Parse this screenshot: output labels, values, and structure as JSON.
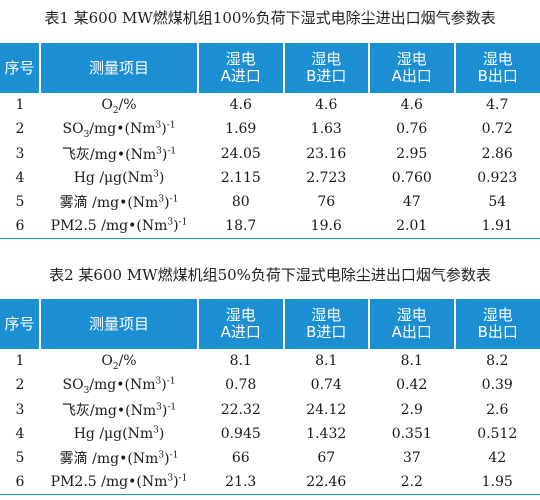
{
  "table1": {
    "caption": "表1 某600 MW燃煤机组100%负荷下湿式电除尘进出口烟气参数表",
    "headers": {
      "seq": "序号",
      "item": "测量项目",
      "cols": [
        {
          "line1": "湿电",
          "line2": "A进口"
        },
        {
          "line1": "湿电",
          "line2": "B进口"
        },
        {
          "line1": "湿电",
          "line2": "A出口"
        },
        {
          "line1": "湿电",
          "line2": "B出口"
        }
      ]
    },
    "rows": [
      {
        "no": "1",
        "values": [
          "4.6",
          "4.6",
          "4.6",
          "4.7"
        ]
      },
      {
        "no": "2",
        "values": [
          "1.69",
          "1.63",
          "0.76",
          "0.72"
        ]
      },
      {
        "no": "3",
        "values": [
          "24.05",
          "23.16",
          "2.95",
          "2.86"
        ]
      },
      {
        "no": "4",
        "values": [
          "2.115",
          "2.723",
          "0.760",
          "0.923"
        ]
      },
      {
        "no": "5",
        "values": [
          "80",
          "76",
          "47",
          "54"
        ]
      },
      {
        "no": "6",
        "values": [
          "18.7",
          "19.6",
          "2.01",
          "1.91"
        ]
      }
    ]
  },
  "table2": {
    "caption": "表2 某600 MW燃煤机组50%负荷下湿式电除尘进出口烟气参数表",
    "headers": {
      "seq": "序号",
      "item": "测量项目",
      "cols": [
        {
          "line1": "湿电",
          "line2": "A进口"
        },
        {
          "line1": "湿电",
          "line2": "B进口"
        },
        {
          "line1": "湿电",
          "line2": "A出口"
        },
        {
          "line1": "湿电",
          "line2": "B出口"
        }
      ]
    },
    "rows": [
      {
        "no": "1",
        "values": [
          "8.1",
          "8.1",
          "8.1",
          "8.2"
        ]
      },
      {
        "no": "2",
        "values": [
          "0.78",
          "0.74",
          "0.42",
          "0.39"
        ]
      },
      {
        "no": "3",
        "values": [
          "22.32",
          "24.12",
          "2.9",
          "2.6"
        ]
      },
      {
        "no": "4",
        "values": [
          "0.945",
          "1.432",
          "0.351",
          "0.512"
        ]
      },
      {
        "no": "5",
        "values": [
          "66",
          "67",
          "37",
          "42"
        ]
      },
      {
        "no": "6",
        "values": [
          "21.3",
          "22.46",
          "2.2",
          "1.95"
        ]
      }
    ]
  },
  "items": [
    {
      "pre": "O",
      "sub": "2",
      "post": "/%",
      "sup": "",
      "tail": ""
    },
    {
      "pre": "SO",
      "sub": "3",
      "post": "/mg•(Nm",
      "sup": "3",
      "tail": ")",
      "exp": "-1"
    },
    {
      "pre": "飞灰/mg•(Nm",
      "sub": "",
      "post": "",
      "sup": "3",
      "tail": ")",
      "exp": "-1"
    },
    {
      "pre": "Hg /μg(Nm",
      "sub": "",
      "post": "",
      "sup": "3",
      "tail": ")",
      "exp": ""
    },
    {
      "pre": "雾滴 /mg•(Nm",
      "sub": "",
      "post": "",
      "sup": "3",
      "tail": ")",
      "exp": "-1"
    },
    {
      "pre": "PM2.5 /mg•(Nm",
      "sub": "",
      "post": "",
      "sup": "3",
      "tail": ")",
      "exp": "-1"
    }
  ],
  "colors": {
    "header_bg": "#1b8fd2",
    "header_text": "#ffffff"
  }
}
